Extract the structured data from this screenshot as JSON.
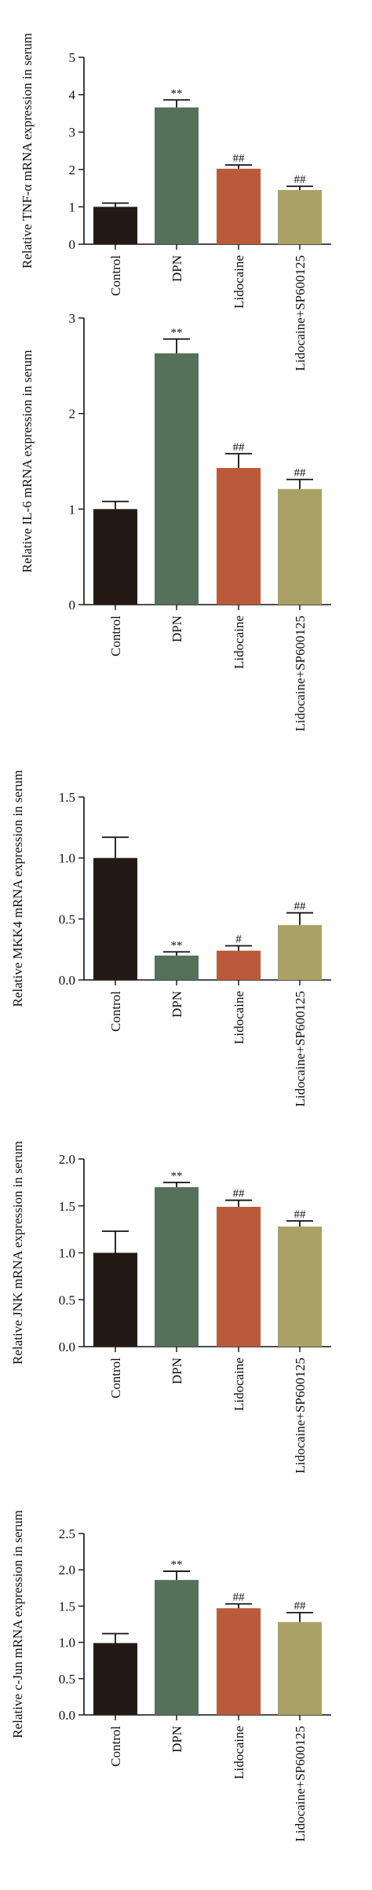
{
  "colors": {
    "Control": "#241915",
    "DPN": "#56715a",
    "Lidocaine": "#b95a3b",
    "Lidocaine+SP600125": "#aaa265"
  },
  "chart_data": [
    {
      "type": "bar",
      "ylabel": "Relative TNF-α mRNA expression in serum",
      "categories": [
        "Control",
        "DPN",
        "Lidocaine",
        "Lidocaine+SP600125"
      ],
      "values": [
        1.0,
        3.66,
        2.02,
        1.45
      ],
      "errors": [
        0.1,
        0.2,
        0.1,
        0.1
      ],
      "annotations": [
        "",
        "**",
        "##",
        "##"
      ],
      "ylim": [
        0,
        5
      ],
      "yticks": [
        0,
        1,
        2,
        3,
        4,
        5
      ],
      "ytick_labels": [
        "0",
        "1",
        "2",
        "3",
        "4",
        "5"
      ],
      "grid": false,
      "legend": "none"
    },
    {
      "type": "bar",
      "ylabel": "Relative IL-6 mRNA expression in serum",
      "categories": [
        "Control",
        "DPN",
        "Lidocaine",
        "Lidocaine+SP600125"
      ],
      "values": [
        1.0,
        2.63,
        1.43,
        1.21
      ],
      "errors": [
        0.08,
        0.15,
        0.15,
        0.1
      ],
      "annotations": [
        "",
        "**",
        "##",
        "##"
      ],
      "ylim": [
        0,
        3
      ],
      "yticks": [
        0,
        1,
        2,
        3
      ],
      "ytick_labels": [
        "0",
        "1",
        "2",
        "3"
      ],
      "grid": false,
      "legend": "none"
    },
    {
      "type": "bar",
      "ylabel": "Relative MKK4 mRNA expression in serum",
      "categories": [
        "Control",
        "DPN",
        "Lidocaine",
        "Lidocaine+SP600125"
      ],
      "values": [
        1.0,
        0.2,
        0.24,
        0.45
      ],
      "errors": [
        0.17,
        0.03,
        0.04,
        0.1
      ],
      "annotations": [
        "",
        "**",
        "#",
        "##"
      ],
      "ylim": [
        0,
        1.5
      ],
      "yticks": [
        0,
        0.5,
        1.0,
        1.5
      ],
      "ytick_labels": [
        "0.0",
        "0.5",
        "1.0",
        "1.5"
      ],
      "grid": false,
      "legend": "none"
    },
    {
      "type": "bar",
      "ylabel": "Relative JNK mRNA expression in serum",
      "categories": [
        "Control",
        "DPN",
        "Lidocaine",
        "Lidocaine+SP600125"
      ],
      "values": [
        1.0,
        1.7,
        1.49,
        1.28
      ],
      "errors": [
        0.23,
        0.05,
        0.07,
        0.06
      ],
      "annotations": [
        "",
        "**",
        "##",
        "##"
      ],
      "ylim": [
        0,
        2.0
      ],
      "yticks": [
        0,
        0.5,
        1.0,
        1.5,
        2.0
      ],
      "ytick_labels": [
        "0.0",
        "0.5",
        "1.0",
        "1.5",
        "2.0"
      ],
      "grid": false,
      "legend": "none"
    },
    {
      "type": "bar",
      "ylabel": "Relative c-Jun mRNA expression in serum",
      "categories": [
        "Control",
        "DPN",
        "Lidocaine",
        "Lidocaine+SP600125"
      ],
      "values": [
        0.99,
        1.86,
        1.47,
        1.28
      ],
      "errors": [
        0.13,
        0.12,
        0.06,
        0.13
      ],
      "annotations": [
        "",
        "**",
        "##",
        "##"
      ],
      "ylim": [
        0,
        2.5
      ],
      "yticks": [
        0,
        0.5,
        1.0,
        1.5,
        2.0,
        2.5
      ],
      "ytick_labels": [
        "0.0",
        "0.5",
        "1.0",
        "1.5",
        "2.0",
        "2.5"
      ],
      "grid": false,
      "legend": "none"
    }
  ]
}
